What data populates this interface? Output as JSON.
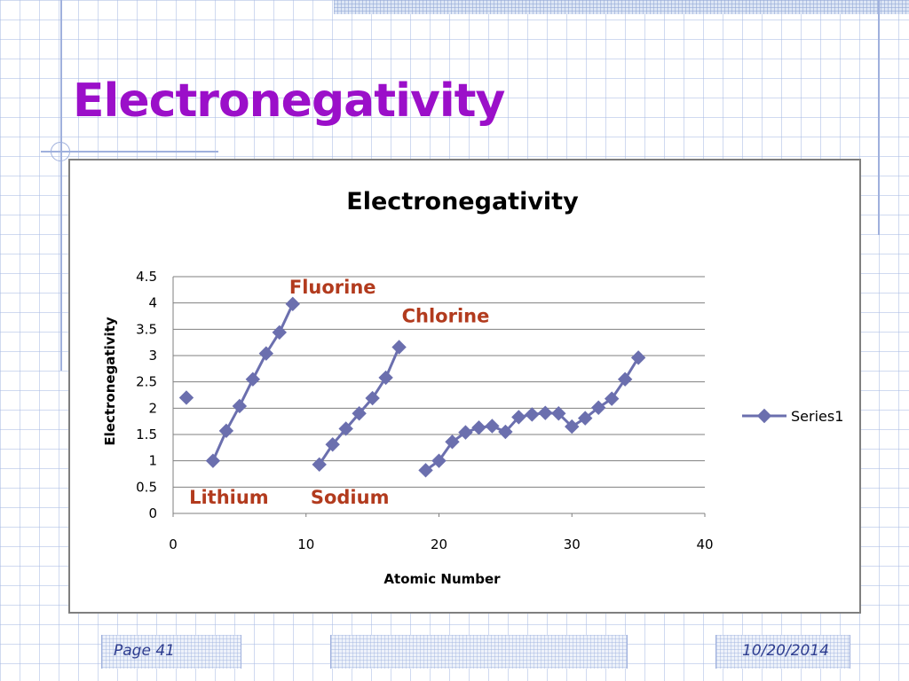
{
  "slide": {
    "title": "Electronegativity",
    "footer_page": "Page 41",
    "footer_date": "10/20/2014"
  },
  "colors": {
    "title": "#9b0fc9",
    "series": "#6b6fae",
    "annotation": "#b23b1e",
    "grid": "#7f7f7f"
  },
  "chart_data": {
    "type": "line",
    "title": "Electronegativity",
    "xlabel": "Atomic Number",
    "ylabel": "Electronegativity",
    "xlim": [
      0,
      40
    ],
    "ylim": [
      0,
      4.5
    ],
    "x_ticks": [
      "0",
      "10",
      "20",
      "30",
      "40"
    ],
    "y_ticks": [
      "0",
      "0.5",
      "1",
      "1.5",
      "2",
      "2.5",
      "3",
      "3.5",
      "4",
      "4.5"
    ],
    "grid": "horizontal",
    "legend_position": "right",
    "series": [
      {
        "name": "Series1",
        "marker": "diamond",
        "segments": [
          [
            [
              1,
              2.2
            ]
          ],
          [
            [
              3,
              1.0
            ],
            [
              4,
              1.57
            ],
            [
              5,
              2.04
            ],
            [
              6,
              2.55
            ],
            [
              7,
              3.04
            ],
            [
              8,
              3.44
            ],
            [
              9,
              3.98
            ]
          ],
          [
            [
              11,
              0.93
            ],
            [
              12,
              1.31
            ],
            [
              13,
              1.61
            ],
            [
              14,
              1.9
            ],
            [
              15,
              2.19
            ],
            [
              16,
              2.58
            ],
            [
              17,
              3.16
            ]
          ],
          [
            [
              19,
              0.82
            ],
            [
              20,
              1.0
            ],
            [
              21,
              1.36
            ],
            [
              22,
              1.54
            ],
            [
              23,
              1.63
            ],
            [
              24,
              1.66
            ],
            [
              25,
              1.55
            ],
            [
              26,
              1.83
            ],
            [
              27,
              1.88
            ],
            [
              28,
              1.91
            ],
            [
              29,
              1.9
            ],
            [
              30,
              1.65
            ],
            [
              31,
              1.81
            ],
            [
              32,
              2.01
            ],
            [
              33,
              2.18
            ],
            [
              34,
              2.55
            ],
            [
              35,
              2.96
            ]
          ]
        ]
      }
    ],
    "annotations": [
      {
        "text": "Fluorine",
        "x": 12.0,
        "y": 4.3
      },
      {
        "text": "Chlorine",
        "x": 20.5,
        "y": 3.75
      },
      {
        "text": "Lithium",
        "x": 4.2,
        "y": 0.3
      },
      {
        "text": "Sodium",
        "x": 13.3,
        "y": 0.3
      }
    ]
  }
}
